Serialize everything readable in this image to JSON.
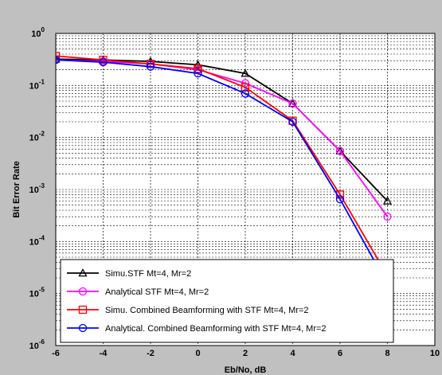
{
  "chart_data": {
    "type": "line",
    "title": "",
    "xlabel": "Eb/No, dB",
    "ylabel": "Bit Error Rate",
    "xlim": [
      -6,
      10
    ],
    "ylim_log10": [
      -6,
      0
    ],
    "y_scale": "log",
    "grid": true,
    "legend_position": "bottom-left",
    "x_ticks": [
      "-6",
      "-4",
      "-2",
      "0",
      "2",
      "4",
      "6",
      "8",
      "10"
    ],
    "y_ticks": [
      {
        "base": "10",
        "exp": "0"
      },
      {
        "base": "10",
        "exp": "-1"
      },
      {
        "base": "10",
        "exp": "-2"
      },
      {
        "base": "10",
        "exp": "-3"
      },
      {
        "base": "10",
        "exp": "-4"
      },
      {
        "base": "10",
        "exp": "-5"
      },
      {
        "base": "10",
        "exp": "-6"
      }
    ],
    "series": [
      {
        "name": "Simu.STF Mt=4, Mr=2",
        "color": "#000000",
        "marker": "triangle",
        "x": [
          -6,
          -4,
          -2,
          0,
          2,
          4,
          6,
          8
        ],
        "y": [
          0.32,
          0.31,
          0.29,
          0.25,
          0.17,
          0.045,
          0.0055,
          0.0006
        ]
      },
      {
        "name": "Analytical STF Mt=4, Mr=2",
        "color": "#ff00ff",
        "marker": "circle",
        "x": [
          -6,
          -4,
          -2,
          0,
          2,
          4,
          6,
          8
        ],
        "y": [
          0.31,
          0.29,
          0.26,
          0.2,
          0.11,
          0.045,
          0.0055,
          0.0003
        ]
      },
      {
        "name": "Simu. Combined Beamforming with STF Mt=4, Mr=2",
        "color": "#ff0000",
        "marker": "square",
        "x": [
          -6,
          -4,
          -2,
          0,
          2,
          4,
          6,
          8
        ],
        "y": [
          0.37,
          0.31,
          0.26,
          0.21,
          0.092,
          0.021,
          0.0008,
          2.2e-05
        ]
      },
      {
        "name": "Analytical. Combined Beamforming with STF Mt=4, Mr=2",
        "color": "#0000ff",
        "marker": "circle",
        "x": [
          -6,
          -4,
          -2,
          0,
          2,
          4,
          6,
          8
        ],
        "y": [
          0.31,
          0.28,
          0.23,
          0.17,
          0.07,
          0.02,
          0.00065,
          1.5e-05
        ]
      }
    ]
  }
}
